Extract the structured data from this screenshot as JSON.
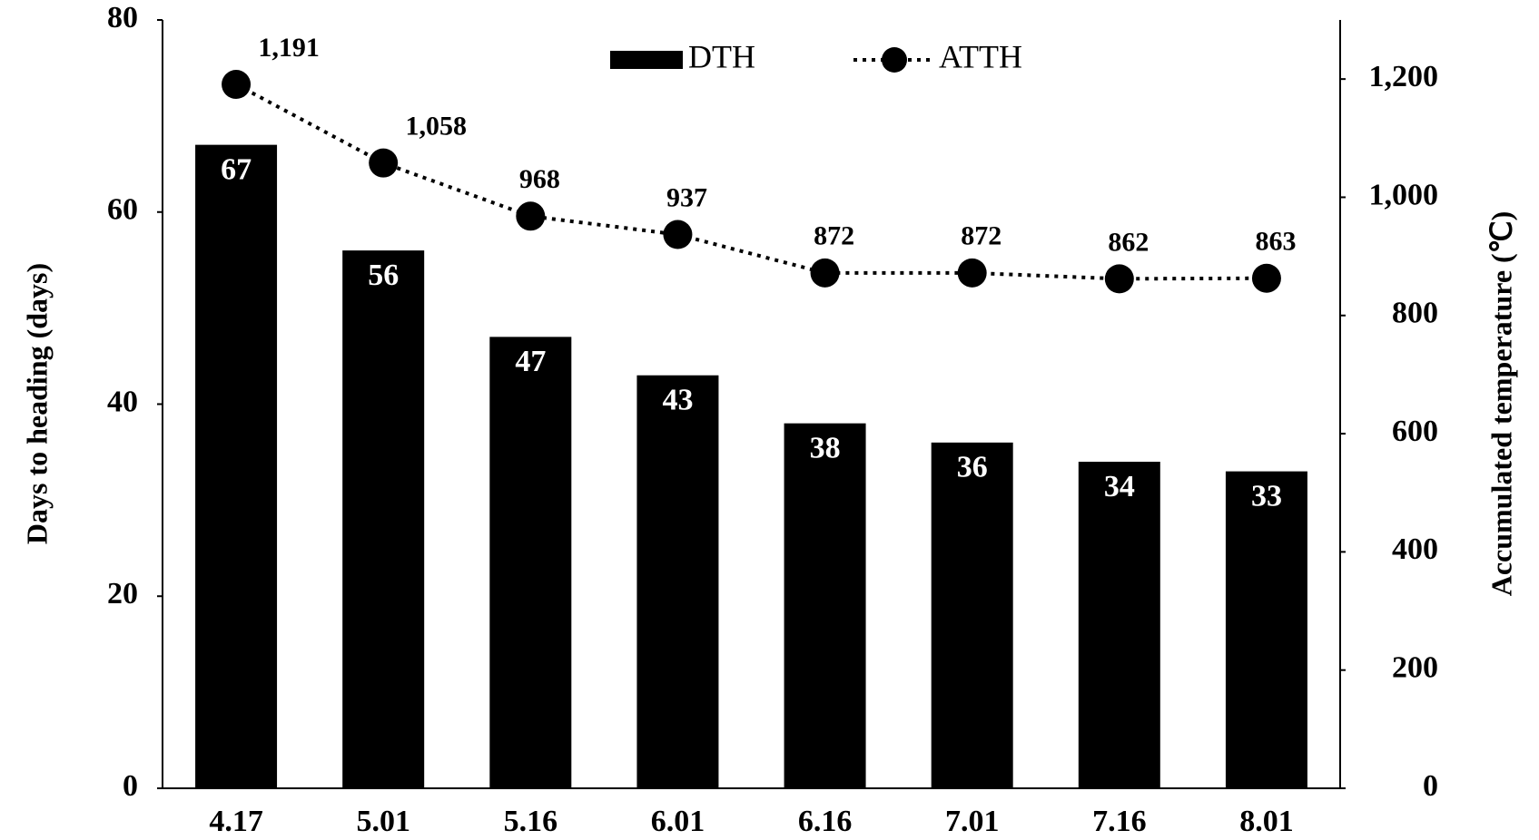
{
  "chart_data": {
    "type": "bar-line",
    "categories": [
      "4.17",
      "5.01",
      "5.16",
      "6.01",
      "6.16",
      "7.01",
      "7.16",
      "8.01"
    ],
    "series": [
      {
        "name": "DTH",
        "type": "bar",
        "color": "#000000",
        "values": [
          67,
          56,
          47,
          43,
          38,
          36,
          34,
          33
        ]
      },
      {
        "name": "ATTH",
        "type": "line",
        "axis": "y2",
        "color": "#000000",
        "line_style": "dotted",
        "values": [
          1191,
          1058,
          968,
          937,
          872,
          872,
          862,
          863
        ],
        "value_labels": [
          "1,191",
          "1,058",
          "968",
          "937",
          "872",
          "872",
          "862",
          "863"
        ]
      }
    ],
    "ylabel": "Days to heading (days)",
    "y2label": "Accumulated temperature (℃)",
    "ylim": [
      0,
      80
    ],
    "yticks": [
      0,
      20,
      40,
      60,
      80
    ],
    "y2lim": [
      0,
      1300
    ],
    "y2ticks": [
      0,
      200,
      400,
      600,
      800,
      {
        "value": 1000,
        "label": "1,000"
      },
      {
        "value": 1200,
        "label": "1,200"
      }
    ],
    "grid": false,
    "legend": "top"
  }
}
